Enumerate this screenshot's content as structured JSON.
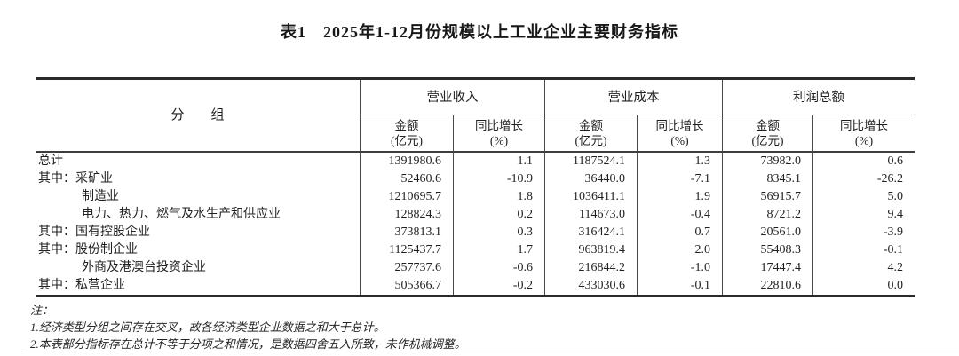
{
  "title": "表1　2025年1-12月份规模以上工业企业主要财务指标",
  "table": {
    "group_column_header": "分　　组",
    "col_groups": [
      {
        "label": "营业收入"
      },
      {
        "label": "营业成本"
      },
      {
        "label": "利润总额"
      }
    ],
    "sub": {
      "amount1": "金额",
      "amount2": "(亿元)",
      "growth1": "同比增长",
      "growth2": "(%)"
    },
    "rows": [
      {
        "prefix": "",
        "label": "总计",
        "indent": false,
        "values": [
          "1391980.6",
          "1.1",
          "1187524.1",
          "1.3",
          "73982.0",
          "0.6"
        ]
      },
      {
        "prefix": "其中：",
        "label": "采矿业",
        "indent": false,
        "values": [
          "52460.6",
          "-10.9",
          "36440.0",
          "-7.1",
          "8345.1",
          "-26.2"
        ]
      },
      {
        "prefix": "",
        "label": "制造业",
        "indent": true,
        "values": [
          "1210695.7",
          "1.8",
          "1036411.1",
          "1.9",
          "56915.7",
          "5.0"
        ]
      },
      {
        "prefix": "",
        "label": "电力、热力、燃气及水生产和供应业",
        "indent": true,
        "values": [
          "128824.3",
          "0.2",
          "114673.0",
          "-0.4",
          "8721.2",
          "9.4"
        ]
      },
      {
        "prefix": "其中：",
        "label": "国有控股企业",
        "indent": false,
        "values": [
          "373813.1",
          "0.3",
          "316424.1",
          "0.7",
          "20561.0",
          "-3.9"
        ]
      },
      {
        "prefix": "其中：",
        "label": "股份制企业",
        "indent": false,
        "values": [
          "1125437.7",
          "1.7",
          "963819.4",
          "2.0",
          "55408.3",
          "-0.1"
        ]
      },
      {
        "prefix": "",
        "label": "外商及港澳台投资企业",
        "indent": true,
        "values": [
          "257737.6",
          "-0.6",
          "216844.2",
          "-1.0",
          "17447.4",
          "4.2"
        ]
      },
      {
        "prefix": "其中：",
        "label": "私营企业",
        "indent": false,
        "values": [
          "505366.7",
          "-0.2",
          "433030.6",
          "-0.1",
          "22810.6",
          "0.0"
        ]
      }
    ]
  },
  "notes": {
    "label": "注：",
    "items": [
      "1.经济类型分组之间存在交叉，故各经济类型企业数据之和大于总计。",
      "2.本表部分指标存在总计不等于分项之和情况，是数据四舍五入所致，未作机械调整。"
    ]
  }
}
